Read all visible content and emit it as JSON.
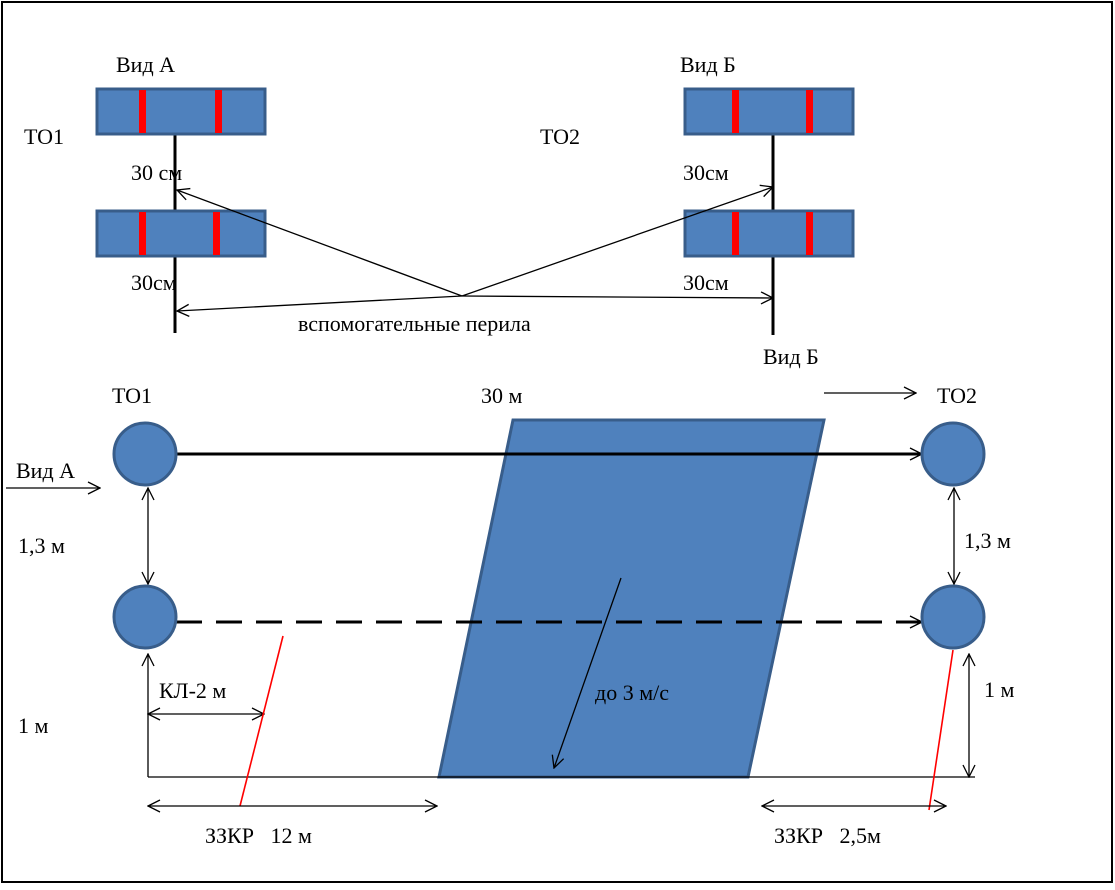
{
  "labels": {
    "view_a_top": "Вид А",
    "view_b_top": "Вид Б",
    "to1_top": "ТО1",
    "to2_top": "ТО2",
    "a_upper_gap": "30 см",
    "a_lower_gap": "30см",
    "b_upper_gap": "30см",
    "b_lower_gap": "30см",
    "aux_rails": "вспомогательные перила",
    "view_b_arrow": "Вид Б",
    "to1_bottom": "ТО1",
    "to2_bottom": "ТО2",
    "river_width": "30 м",
    "view_a_arrow": "Вид А",
    "left_spacing": "1,3 м",
    "right_spacing": "1,3 м",
    "kl": "КЛ-2 м",
    "left_bank": "1 м",
    "right_bank": "1 м",
    "current": "до 3 м/с",
    "zzkr_left": "ЗЗКР   12 м",
    "zzkr_right": "ЗЗКР   2,5м"
  },
  "colors": {
    "fill_blue": "#4F81BD",
    "stroke_blue": "#385D8A",
    "marker_red": "#FF0000",
    "line": "#000000"
  }
}
